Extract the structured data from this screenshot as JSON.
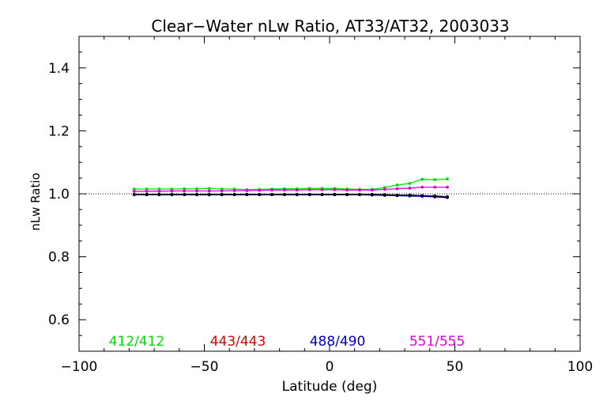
{
  "chart_data": {
    "type": "line",
    "title": "Clear−Water nLw Ratio, AT33/AT32, 2003033",
    "xlabel": "Latitude (deg)",
    "ylabel": "nLw Ratio",
    "xlim": [
      -100,
      100
    ],
    "ylim": [
      0.5,
      1.5
    ],
    "x_ticks": [
      -100,
      -50,
      0,
      50,
      100
    ],
    "x_tick_labels": [
      "−100",
      "−50",
      "0",
      "50",
      "100"
    ],
    "y_ticks": [
      0.6,
      0.8,
      1.0,
      1.2,
      1.4
    ],
    "y_tick_labels": [
      "0.6",
      "0.8",
      "1.0",
      "1.2",
      "1.4"
    ],
    "reference_line": 1.0,
    "grid": false,
    "x": [
      -78,
      -73,
      -68,
      -63,
      -58,
      -53,
      -48,
      -43,
      -38,
      -33,
      -28,
      -23,
      -18,
      -13,
      -8,
      -3,
      2,
      7,
      12,
      17,
      22,
      27,
      32,
      37,
      42,
      47
    ],
    "series": [
      {
        "name": "412/412",
        "color": "#00e000",
        "values": [
          1.015,
          1.015,
          1.015,
          1.015,
          1.016,
          1.016,
          1.017,
          1.015,
          1.015,
          1.013,
          1.014,
          1.015,
          1.016,
          1.016,
          1.017,
          1.017,
          1.017,
          1.015,
          1.014,
          1.014,
          1.02,
          1.028,
          1.033,
          1.046,
          1.045,
          1.047
        ]
      },
      {
        "name": "443/443",
        "color": "#e00000",
        "values": [
          0.998,
          0.998,
          0.998,
          0.998,
          0.998,
          0.998,
          0.998,
          0.998,
          0.998,
          0.998,
          0.998,
          0.998,
          0.998,
          0.998,
          0.998,
          0.998,
          0.998,
          0.998,
          0.998,
          0.998,
          0.997,
          0.996,
          0.996,
          0.994,
          0.993,
          0.991
        ]
      },
      {
        "name": "488/490",
        "color": "#0000c8",
        "values": [
          0.997,
          0.997,
          0.997,
          0.997,
          0.997,
          0.997,
          0.997,
          0.997,
          0.997,
          0.997,
          0.997,
          0.997,
          0.997,
          0.997,
          0.997,
          0.997,
          0.997,
          0.997,
          0.997,
          0.996,
          0.995,
          0.994,
          0.993,
          0.992,
          0.99,
          0.988
        ]
      },
      {
        "name": "551/555",
        "color": "#e000e0",
        "values": [
          1.008,
          1.008,
          1.008,
          1.009,
          1.009,
          1.009,
          1.009,
          1.009,
          1.01,
          1.01,
          1.011,
          1.012,
          1.012,
          1.012,
          1.013,
          1.013,
          1.013,
          1.012,
          1.012,
          1.012,
          1.014,
          1.016,
          1.018,
          1.021,
          1.021,
          1.021
        ]
      }
    ],
    "black_line_values": [
      0.998,
      0.998,
      0.998,
      0.998,
      0.998,
      0.998,
      0.998,
      0.998,
      0.998,
      0.998,
      0.998,
      0.998,
      0.998,
      0.998,
      0.998,
      0.998,
      0.998,
      0.998,
      0.998,
      0.998,
      0.997,
      0.996,
      0.996,
      0.994,
      0.993,
      0.99
    ]
  }
}
